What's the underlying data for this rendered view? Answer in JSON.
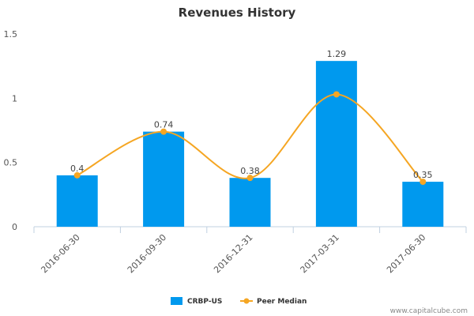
{
  "chart_data": {
    "type": "bar",
    "title": "Revenues History",
    "categories": [
      "2016-06-30",
      "2016-09-30",
      "2016-12-31",
      "2017-03-31",
      "2017-06-30"
    ],
    "series": [
      {
        "name": "CRBP-US",
        "kind": "bar",
        "color": "#0099ee",
        "values": [
          0.4,
          0.74,
          0.38,
          1.29,
          0.35
        ],
        "labels": [
          "0.4",
          "0.74",
          "0.38",
          "1.29",
          "0.35"
        ]
      },
      {
        "name": "Peer Median",
        "kind": "line",
        "color": "#f5a623",
        "values": [
          0.4,
          0.74,
          0.38,
          1.03,
          0.35
        ]
      }
    ],
    "ylim": [
      0,
      1.5
    ],
    "yticks": [
      0,
      0.5,
      1,
      1.5
    ],
    "ytick_labels": [
      "0",
      "0.5",
      "1",
      "1.5"
    ],
    "legend_position": "bottom-center",
    "grid": false
  },
  "watermark": "www.capitalcube.com"
}
